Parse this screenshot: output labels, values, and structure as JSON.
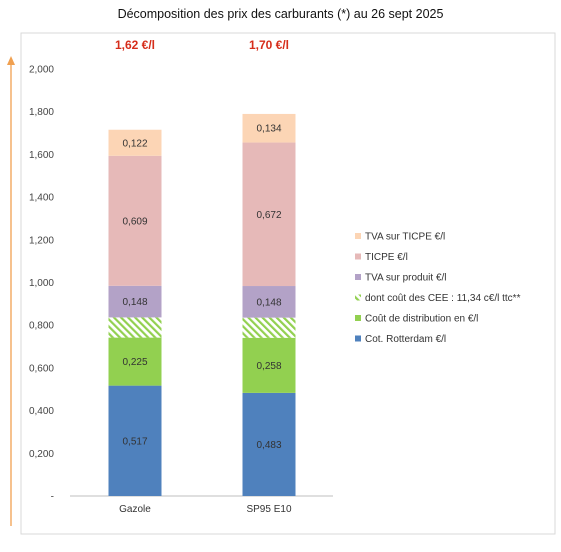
{
  "title": "Décomposition des prix des carburants (*) au 26 sept 2025",
  "chart_data": {
    "type": "bar",
    "stacked": true,
    "categories": [
      "Gazole",
      "SP95 E10"
    ],
    "totals": [
      "1,62 €/l",
      "1,70 €/l"
    ],
    "ylim": [
      0,
      2.0
    ],
    "yticks": [
      "-",
      "0,200",
      "0,400",
      "0,600",
      "0,800",
      "1,000",
      "1,200",
      "1,400",
      "1,600",
      "1,800",
      "2,000"
    ],
    "grid": false,
    "legend_position": "right",
    "series": [
      {
        "name": "Cot. Rotterdam €/l",
        "color": "#4f81bd",
        "values": [
          0.517,
          0.483
        ],
        "labels": [
          "0,517",
          "0,483"
        ]
      },
      {
        "name": "Coût de distribution en €/l",
        "color": "#92d050",
        "values": [
          0.225,
          0.258
        ],
        "labels": [
          "0,225",
          "0,258"
        ]
      },
      {
        "name": "dont coût des CEE : 11,34 c€/l ttc**",
        "color": "#92d050",
        "pattern": "hatch",
        "values": [
          0.0945,
          0.0945
        ],
        "labels": [
          "",
          ""
        ]
      },
      {
        "name": "TVA sur produit €/l",
        "color": "#b3a2c7",
        "values": [
          0.148,
          0.148
        ],
        "labels": [
          "0,148",
          "0,148"
        ]
      },
      {
        "name": "TICPE €/l",
        "color": "#e6b9b8",
        "values": [
          0.609,
          0.672
        ],
        "labels": [
          "0,609",
          "0,672"
        ]
      },
      {
        "name": "TVA sur TICPE €/l",
        "color": "#fcd5b5",
        "values": [
          0.122,
          0.134
        ],
        "labels": [
          "0,122",
          "0,134"
        ]
      }
    ]
  }
}
